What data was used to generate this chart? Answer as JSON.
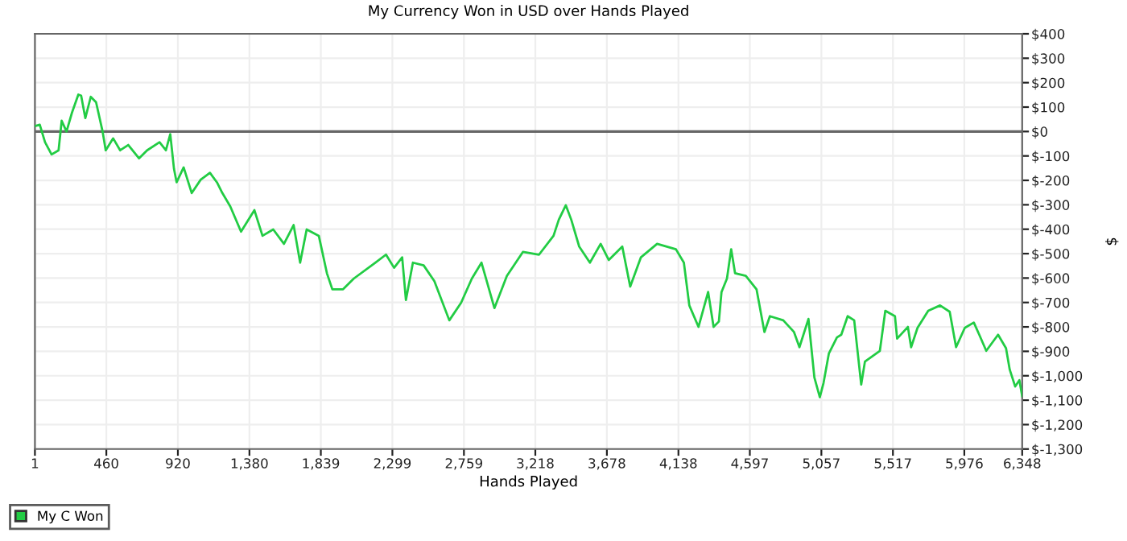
{
  "chart_data": {
    "type": "line",
    "title": "My Currency Won in USD over Hands Played",
    "xlabel": "Hands Played",
    "ylabel": "$",
    "series": [
      {
        "name": "My C Won",
        "color": "#22cc44",
        "x": [
          1,
          32,
          66,
          108,
          153,
          173,
          204,
          239,
          280,
          298,
          325,
          360,
          394,
          436,
          456,
          504,
          549,
          601,
          670,
          722,
          802,
          843,
          871,
          895,
          912,
          957,
          1009,
          1067,
          1126,
          1171,
          1206,
          1257,
          1326,
          1412,
          1464,
          1533,
          1602,
          1664,
          1706,
          1748,
          1826,
          1878,
          1913,
          1982,
          2051,
          2189,
          2258,
          2310,
          2362,
          2386,
          2431,
          2500,
          2569,
          2665,
          2741,
          2810,
          2872,
          2955,
          3035,
          3138,
          3242,
          3335,
          3369,
          3414,
          3449,
          3500,
          3569,
          3638,
          3690,
          3777,
          3828,
          3897,
          4001,
          4122,
          4173,
          4208,
          4267,
          4329,
          4364,
          4398,
          4415,
          4450,
          4477,
          4502,
          4571,
          4640,
          4691,
          4726,
          4812,
          4881,
          4916,
          4974,
          5012,
          5047,
          5071,
          5105,
          5157,
          5185,
          5226,
          5268,
          5313,
          5337,
          5433,
          5468,
          5530,
          5544,
          5613,
          5634,
          5675,
          5744,
          5820,
          5882,
          5923,
          5979,
          6037,
          6072,
          6117,
          6193,
          6244,
          6268,
          6303,
          6330,
          6348
        ],
        "values": [
          22,
          28,
          -44,
          -94,
          -77,
          44,
          0,
          77,
          151,
          147,
          55,
          142,
          120,
          0,
          -77,
          -28,
          -77,
          -55,
          -110,
          -77,
          -44,
          -77,
          -11,
          -153,
          -208,
          -147,
          -252,
          -197,
          -169,
          -208,
          -252,
          -307,
          -410,
          -322,
          -427,
          -401,
          -460,
          -383,
          -537,
          -401,
          -427,
          -580,
          -646,
          -646,
          -602,
          -537,
          -504,
          -558,
          -515,
          -690,
          -537,
          -548,
          -613,
          -773,
          -701,
          -602,
          -537,
          -723,
          -591,
          -493,
          -504,
          -427,
          -361,
          -302,
          -361,
          -471,
          -537,
          -460,
          -526,
          -471,
          -635,
          -515,
          -460,
          -482,
          -537,
          -712,
          -800,
          -657,
          -800,
          -778,
          -657,
          -602,
          -482,
          -580,
          -591,
          -646,
          -821,
          -756,
          -773,
          -821,
          -883,
          -767,
          -1007,
          -1088,
          -1029,
          -909,
          -843,
          -832,
          -756,
          -773,
          -1036,
          -942,
          -898,
          -734,
          -756,
          -848,
          -800,
          -883,
          -804,
          -734,
          -712,
          -738,
          -883,
          -804,
          -782,
          -832,
          -898,
          -832,
          -887,
          -975,
          -1044,
          -1018,
          -1084
        ]
      }
    ],
    "xlim": [
      1,
      6348
    ],
    "xticks": [
      {
        "value": 1,
        "label": "1"
      },
      {
        "value": 460,
        "label": "460"
      },
      {
        "value": 920,
        "label": "920"
      },
      {
        "value": 1380,
        "label": "1,380"
      },
      {
        "value": 1839,
        "label": "1,839"
      },
      {
        "value": 2299,
        "label": "2,299"
      },
      {
        "value": 2759,
        "label": "2,759"
      },
      {
        "value": 3218,
        "label": "3,218"
      },
      {
        "value": 3678,
        "label": "3,678"
      },
      {
        "value": 4138,
        "label": "4,138"
      },
      {
        "value": 4597,
        "label": "4,597"
      },
      {
        "value": 5057,
        "label": "5,057"
      },
      {
        "value": 5517,
        "label": "5,517"
      },
      {
        "value": 5976,
        "label": "5,976"
      },
      {
        "value": 6348,
        "label": "6,348"
      }
    ],
    "ylim": [
      -1300,
      400
    ],
    "yticks": [
      {
        "value": 400,
        "label": "$400"
      },
      {
        "value": 300,
        "label": "$300"
      },
      {
        "value": 200,
        "label": "$200"
      },
      {
        "value": 100,
        "label": "$100"
      },
      {
        "value": 0,
        "label": "$0"
      },
      {
        "value": -100,
        "label": "$-100"
      },
      {
        "value": -200,
        "label": "$-200"
      },
      {
        "value": -300,
        "label": "$-300"
      },
      {
        "value": -400,
        "label": "$-400"
      },
      {
        "value": -500,
        "label": "$-500"
      },
      {
        "value": -600,
        "label": "$-600"
      },
      {
        "value": -700,
        "label": "$-700"
      },
      {
        "value": -800,
        "label": "$-800"
      },
      {
        "value": -900,
        "label": "$-900"
      },
      {
        "value": -1000,
        "label": "$-1,000"
      },
      {
        "value": -1100,
        "label": "$-1,100"
      },
      {
        "value": -1200,
        "label": "$-1,200"
      },
      {
        "value": -1300,
        "label": "$-1,300"
      }
    ],
    "ref_lines": [
      {
        "axis": "y",
        "value": 0,
        "color": "#666666"
      }
    ],
    "grid": true,
    "legend": "bottom left",
    "marker": "none",
    "line_style": "solid"
  }
}
